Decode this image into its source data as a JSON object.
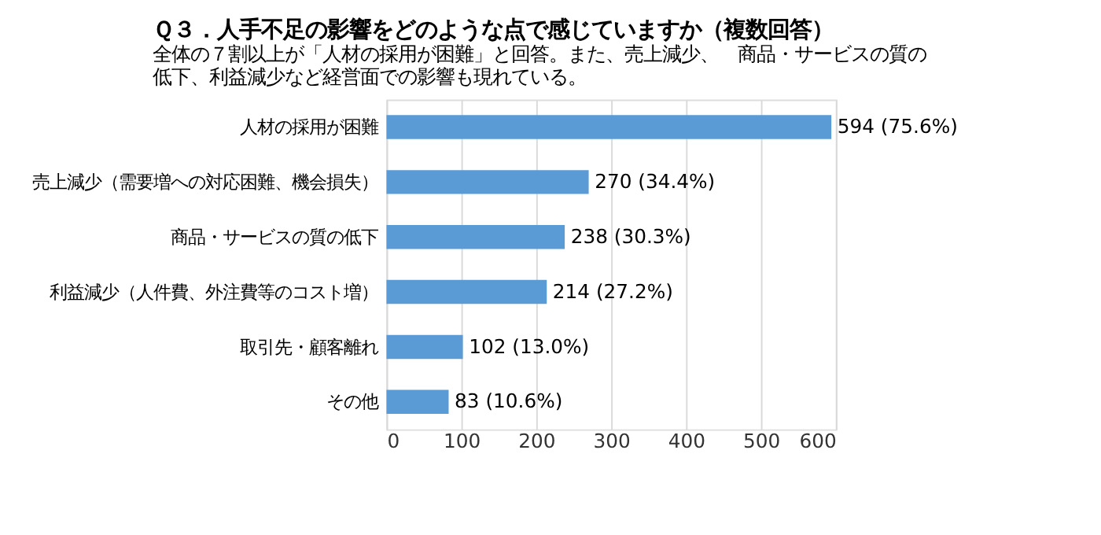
{
  "chart_data": {
    "type": "bar",
    "orientation": "horizontal",
    "title": "Ｑ３．人手不足の影響をどのような点で感じていますか（複数回答）",
    "subtitle": "全体の７割以上が「人材の採用が困難」と回答。また、売上減少、　商品・サービスの質の低下、利益減少など経営面での影響も現れている。",
    "categories": [
      "人材の採用が困難",
      "売上減少（需要増への対応困難、機会損失）",
      "商品・サービスの質の低下",
      "利益減少（人件費、外注費等のコスト増）",
      "取引先・顧客離れ",
      "その他"
    ],
    "values": [
      594,
      270,
      238,
      214,
      102,
      83
    ],
    "value_labels": [
      "594 (75.6%)",
      "270 (34.4%)",
      "238 (30.3%)",
      "214 (27.2%)",
      "102 (13.0%)",
      "83 (10.6%)"
    ],
    "color": "#5b9bd5",
    "xlim": [
      0,
      600
    ],
    "xticks": [
      0,
      100,
      200,
      300,
      400,
      500,
      600
    ],
    "grid": "x"
  }
}
